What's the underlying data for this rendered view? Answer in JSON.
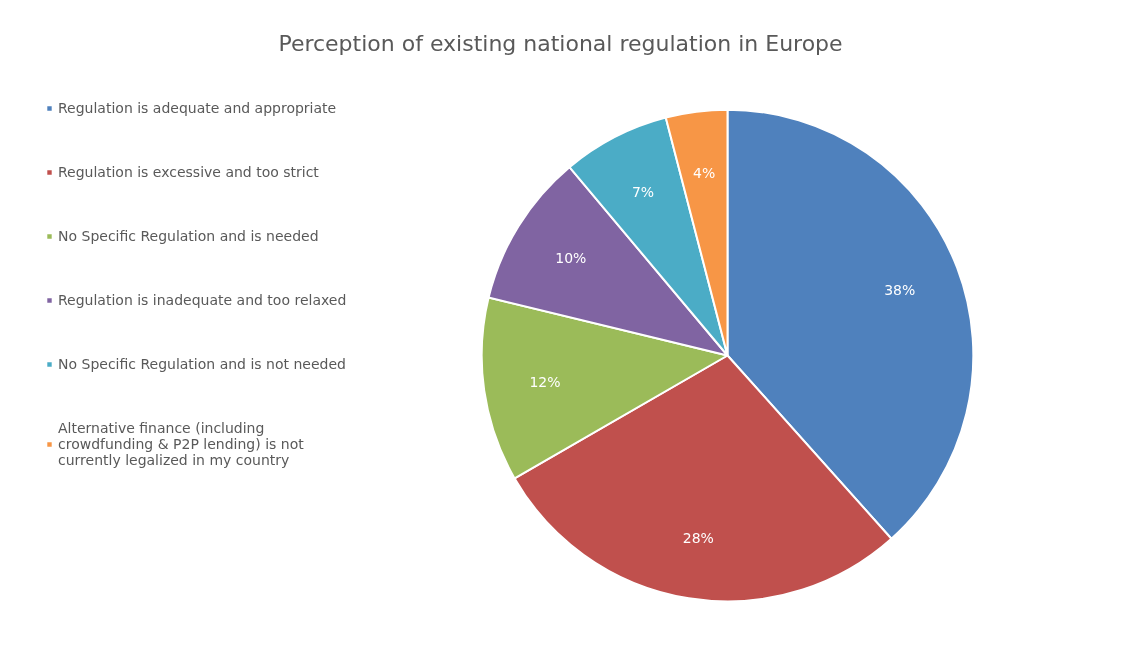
{
  "chart_data": {
    "type": "pie",
    "title": "Perception of existing national regulation in Europe",
    "categories": [
      "Regulation is adequate and appropriate",
      "Regulation is excessive and too strict",
      "No Specific Regulation and is needed",
      "Regulation is inadequate and too relaxed",
      "No Specific Regulation and is not needed",
      "Alternative finance (including crowdfunding & P2P lending) is not currently legalized in my country"
    ],
    "values": [
      38,
      28,
      12,
      10,
      7,
      4
    ],
    "value_labels": [
      "38%",
      "28%",
      "12%",
      "10%",
      "7%",
      "4%"
    ],
    "colors": [
      "#4f81bd",
      "#c0504d",
      "#9bbb59",
      "#8064a2",
      "#4bacc6",
      "#f79646"
    ],
    "legend": "left"
  }
}
